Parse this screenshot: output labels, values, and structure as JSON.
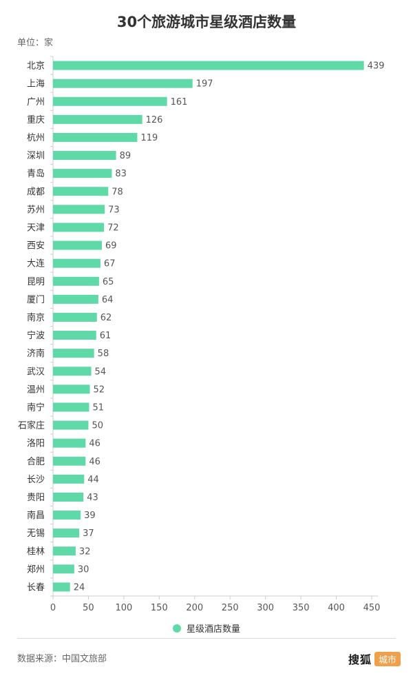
{
  "chart_data": {
    "type": "bar",
    "orientation": "horizontal",
    "title": "30个旅游城市星级酒店数量",
    "unit_label": "单位：家",
    "categories": [
      "北京",
      "上海",
      "广州",
      "重庆",
      "杭州",
      "深圳",
      "青岛",
      "成都",
      "苏州",
      "天津",
      "西安",
      "大连",
      "昆明",
      "厦门",
      "南京",
      "宁波",
      "济南",
      "武汉",
      "温州",
      "南宁",
      "石家庄",
      "洛阳",
      "合肥",
      "长沙",
      "贵阳",
      "南昌",
      "无锡",
      "桂林",
      "郑州",
      "长春"
    ],
    "series": [
      {
        "name": "星级酒店数量",
        "values": [
          439,
          197,
          161,
          126,
          119,
          89,
          83,
          78,
          73,
          72,
          69,
          67,
          65,
          64,
          62,
          61,
          58,
          54,
          52,
          51,
          50,
          46,
          46,
          44,
          43,
          39,
          37,
          32,
          30,
          24
        ]
      }
    ],
    "xlim": [
      0,
      450
    ],
    "xticks": [
      0,
      50,
      100,
      150,
      200,
      250,
      300,
      350,
      400,
      450
    ],
    "grid": false,
    "legend_position": "bottom",
    "colors": {
      "bar": "#5fd9a8"
    }
  },
  "footer": {
    "source": "数据来源：中国文旅部",
    "logo_main": "搜狐",
    "logo_tag": "城市"
  }
}
